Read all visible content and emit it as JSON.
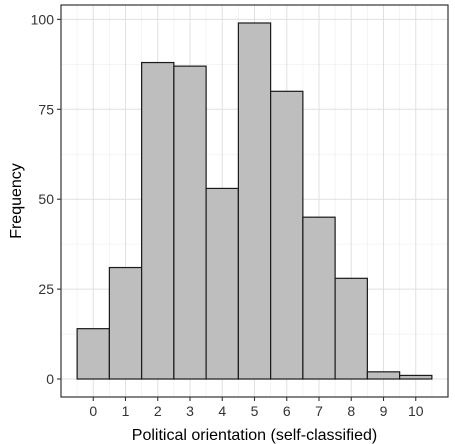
{
  "chart_data": {
    "type": "bar",
    "title": "",
    "xlabel": "Political orientation (self-classified)",
    "ylabel": "Frequency",
    "categories": [
      "0",
      "1",
      "2",
      "3",
      "4",
      "5",
      "6",
      "7",
      "8",
      "9",
      "10"
    ],
    "values": [
      14,
      31,
      88,
      87,
      53,
      99,
      80,
      45,
      28,
      2,
      1
    ],
    "xlim": [
      -1.0,
      11.0
    ],
    "ylim": [
      -5,
      104
    ],
    "yticks": [
      0,
      25,
      50,
      75,
      100
    ],
    "grid": true,
    "legend": "none",
    "colors": {
      "bar_fill": "#bebebe",
      "bar_stroke": "#1a1a1a",
      "grid_major": "#e0e0e0",
      "grid_minor": "#f1f1f1",
      "panel_border": "#333333"
    }
  }
}
